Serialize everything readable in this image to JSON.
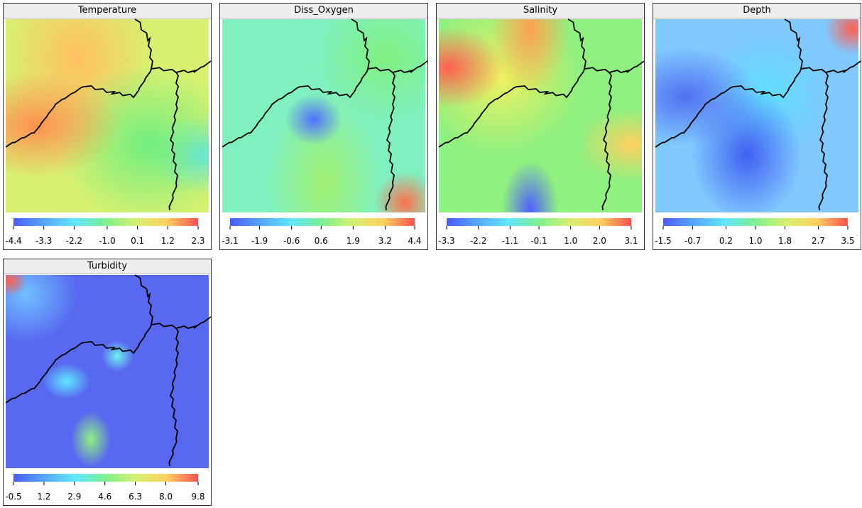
{
  "chart_data": [
    {
      "type": "heatmap",
      "title": "Temperature",
      "clim": [
        -4.4,
        2.3
      ],
      "cticks": [
        -4.4,
        -3.3,
        -2.2,
        {
          "value": -1,
          "label": "-1.0"
        },
        0.1,
        1.2,
        2.3
      ]
    },
    {
      "type": "heatmap",
      "title": "Diss_Oxygen",
      "clim": [
        -3.1,
        4.4
      ],
      "cticks": [
        -3.1,
        -1.9,
        -0.6,
        0.6,
        1.9,
        3.2,
        4.4
      ]
    },
    {
      "type": "heatmap",
      "title": "Salinity",
      "clim": [
        -3.3,
        3.1
      ],
      "cticks": [
        -3.3,
        -2.2,
        -1.1,
        -0.1,
        {
          "value": 1,
          "label": "1.0"
        },
        {
          "value": 2,
          "label": "2.0"
        },
        3.1
      ]
    },
    {
      "type": "heatmap",
      "title": "Depth",
      "clim": [
        -1.5,
        3.5
      ],
      "cticks": [
        -1.5,
        -0.7,
        0.2,
        {
          "value": 1,
          "label": "1.0"
        },
        1.8,
        2.7,
        3.5
      ]
    },
    {
      "type": "heatmap",
      "title": "Turbidity",
      "clim": [
        -0.5,
        9.8
      ],
      "cticks": [
        -0.5,
        1.2,
        2.9,
        4.6,
        6.3,
        {
          "value": 8,
          "label": "8.0"
        },
        9.8
      ]
    }
  ]
}
